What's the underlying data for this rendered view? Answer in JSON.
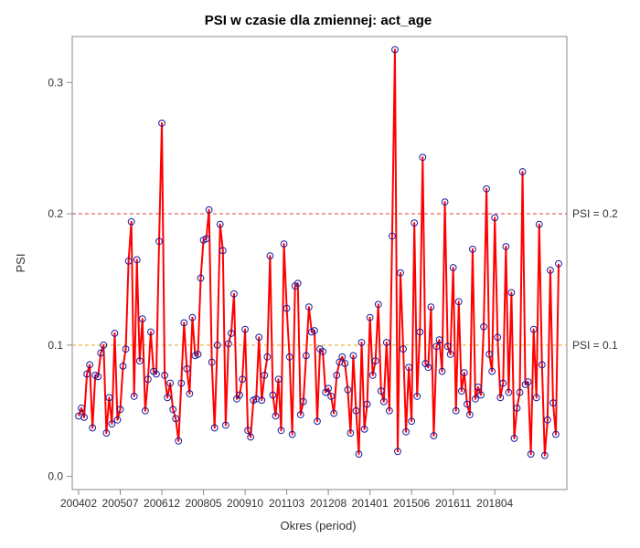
{
  "chart_data": {
    "type": "line",
    "title": "PSI w czasie dla zmiennej: act_age",
    "xlabel": "Okres (period)",
    "ylabel": "PSI",
    "x_tick_labels": [
      "200402",
      "200507",
      "200612",
      "200805",
      "200910",
      "201103",
      "201208",
      "201401",
      "201506",
      "201611",
      "201804"
    ],
    "x_tick_index": [
      0,
      15,
      30,
      45,
      60,
      75,
      90,
      105,
      120,
      135,
      150
    ],
    "y_ticks": [
      0.0,
      0.1,
      0.2,
      0.3
    ],
    "y_tick_labels": [
      "0.0",
      "0.1",
      "0.2",
      "0.3"
    ],
    "ylim": [
      -0.01,
      0.335
    ],
    "reference_lines": [
      {
        "value": 0.2,
        "label": "PSI = 0.2",
        "color": "#e05050"
      },
      {
        "value": 0.1,
        "label": "PSI = 0.1",
        "color": "#e8b84a"
      }
    ],
    "line_color": "#ff0000",
    "marker_color": "#1a1aa0",
    "grid": false,
    "series": [
      {
        "values": [
          0.046,
          0.052,
          0.045,
          0.078,
          0.085,
          0.037,
          0.077,
          0.076,
          0.094,
          0.1,
          0.033,
          0.06,
          0.04,
          0.109,
          0.043,
          0.051,
          0.084,
          0.097,
          0.164,
          0.194,
          0.061,
          0.165,
          0.088,
          0.12,
          0.05,
          0.074,
          0.11,
          0.08,
          0.078,
          0.179,
          0.269,
          0.077,
          0.06,
          0.071,
          0.051,
          0.044,
          0.027,
          0.071,
          0.117,
          0.082,
          0.063,
          0.121,
          0.092,
          0.093,
          0.151,
          0.18,
          0.181,
          0.203,
          0.087,
          0.037,
          0.1,
          0.192,
          0.172,
          0.039,
          0.101,
          0.109,
          0.139,
          0.059,
          0.062,
          0.074,
          0.112,
          0.035,
          0.03,
          0.058,
          0.059,
          0.106,
          0.058,
          0.077,
          0.091,
          0.168,
          0.062,
          0.046,
          0.074,
          0.035,
          0.177,
          0.128,
          0.091,
          0.032,
          0.145,
          0.147,
          0.047,
          0.057,
          0.092,
          0.129,
          0.11,
          0.111,
          0.042,
          0.097,
          0.095,
          0.064,
          0.067,
          0.061,
          0.048,
          0.077,
          0.087,
          0.091,
          0.086,
          0.066,
          0.033,
          0.092,
          0.05,
          0.017,
          0.102,
          0.036,
          0.055,
          0.121,
          0.077,
          0.088,
          0.131,
          0.065,
          0.057,
          0.102,
          0.05,
          0.183,
          0.325,
          0.019,
          0.155,
          0.097,
          0.034,
          0.083,
          0.042,
          0.193,
          0.061,
          0.11,
          0.243,
          0.086,
          0.083,
          0.129,
          0.031,
          0.099,
          0.104,
          0.08,
          0.209,
          0.099,
          0.093,
          0.159,
          0.05,
          0.133,
          0.065,
          0.079,
          0.055,
          0.047,
          0.173,
          0.059,
          0.068,
          0.062,
          0.114,
          0.219,
          0.093,
          0.08,
          0.197,
          0.106,
          0.06,
          0.071,
          0.175,
          0.064,
          0.14,
          0.029,
          0.052,
          0.064,
          0.232,
          0.07,
          0.072,
          0.017,
          0.112,
          0.06,
          0.192,
          0.085,
          0.016,
          0.043,
          0.157,
          0.056,
          0.032,
          0.162
        ]
      }
    ]
  }
}
